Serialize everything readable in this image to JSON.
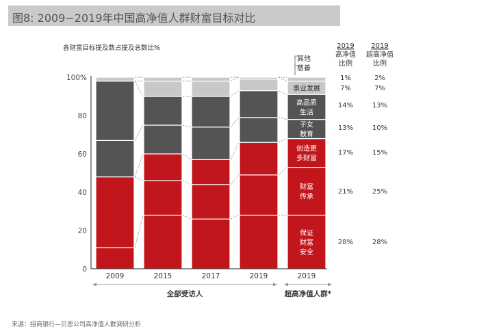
{
  "title": "图8: 2009−2019年中国高净值人群财富目标对比",
  "source": "来源：招商银行—贝恩公司高净值人群调研分析",
  "colors": {
    "red": "#c0161c",
    "dark": "#545454",
    "light": "#c8c8c8"
  },
  "chart_data": {
    "type": "bar",
    "stacked": true,
    "ylabel": "各财富目标提及数占提及总数比%",
    "ylim": [
      0,
      100
    ],
    "yticks": [
      "0",
      "20",
      "40",
      "60",
      "80",
      "100%"
    ],
    "categories": [
      "2009",
      "2015",
      "2017",
      "2019",
      "2019"
    ],
    "groups": [
      {
        "label": "全部受访人",
        "categories": [
          "2009",
          "2015",
          "2017",
          "2019"
        ]
      },
      {
        "label": "超高净值人群*",
        "categories": [
          "2019"
        ]
      }
    ],
    "series": [
      {
        "name": "保证财富安全",
        "label_lines": [
          "保证",
          "财富",
          "安全"
        ],
        "color": "red",
        "values": [
          11,
          28,
          26,
          28,
          28
        ]
      },
      {
        "name": "财富传承",
        "label_lines": [
          "财富",
          "传承"
        ],
        "color": "red",
        "values": [
          37,
          18,
          18,
          21,
          25
        ]
      },
      {
        "name": "创造更多财富",
        "label_lines": [
          "创造更",
          "多财富"
        ],
        "color": "red",
        "values": [
          0,
          14,
          13,
          17,
          15
        ]
      },
      {
        "name": "子女教育",
        "label_lines": [
          "子女",
          "教育"
        ],
        "color": "dark",
        "values": [
          19,
          15,
          17,
          13,
          10
        ]
      },
      {
        "name": "高品质生活",
        "label_lines": [
          "高品质",
          "生活"
        ],
        "color": "dark",
        "values": [
          31,
          15,
          16,
          14,
          13
        ]
      },
      {
        "name": "事业发展",
        "label_lines": [
          "事业发展"
        ],
        "color": "light",
        "values": [
          0,
          8,
          8,
          7,
          7
        ]
      },
      {
        "name": "其他慈善",
        "label_lines": [
          "其他",
          "慈善"
        ],
        "color": "light",
        "values": [
          2,
          2,
          2,
          1,
          2
        ]
      }
    ],
    "table": {
      "columns": [
        {
          "year": "2019",
          "header_lines": [
            "高净值",
            "比例"
          ],
          "values": [
            "28%",
            "21%",
            "17%",
            "13%",
            "14%",
            "7%",
            "1%"
          ]
        },
        {
          "year": "2019",
          "header_lines": [
            "超高净值",
            "比例"
          ],
          "values": [
            "28%",
            "25%",
            "15%",
            "10%",
            "13%",
            "7%",
            "2%"
          ]
        }
      ]
    },
    "grid": false,
    "legend": "inline labels in last bar"
  }
}
